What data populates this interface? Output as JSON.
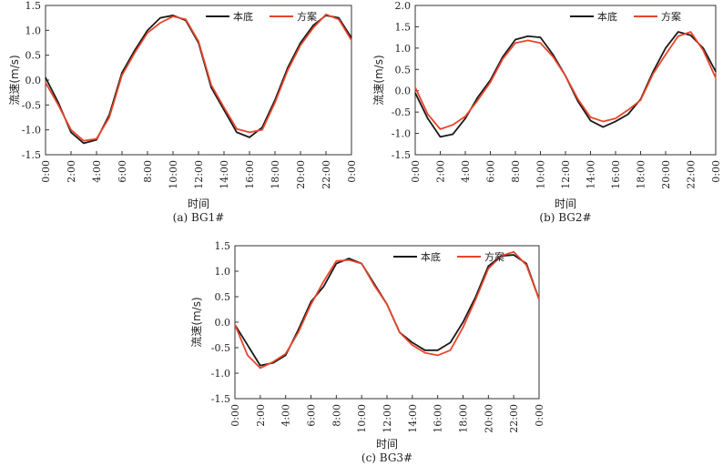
{
  "colors": {
    "base": "#1a1a1a",
    "plan": "#e8452a"
  },
  "chart_data": [
    {
      "type": "line",
      "caption": "(a) BG1#",
      "xlabel": "时间",
      "ylabel": "流速(m/s)",
      "ylim": [
        -1.5,
        1.5
      ],
      "yticks": [
        "-1.5",
        "-1.0",
        "-0.5",
        "0.0",
        "0.5",
        "1.0",
        "1.5"
      ],
      "xticks": [
        "0:00",
        "2:00",
        "4:00",
        "6:00",
        "8:00",
        "10:00",
        "12:00",
        "14:00",
        "16:00",
        "18:00",
        "20:00",
        "22:00",
        "0:00"
      ],
      "legend": [
        "本底",
        "方案"
      ],
      "legend_position": "top-right",
      "x": [
        0,
        1,
        2,
        3,
        4,
        5,
        6,
        7,
        8,
        9,
        10,
        11,
        12,
        13,
        14,
        15,
        16,
        17,
        18,
        19,
        20,
        21,
        22,
        23,
        24
      ],
      "series": [
        {
          "name": "本底",
          "values": [
            0.05,
            -0.45,
            -1.05,
            -1.27,
            -1.2,
            -0.7,
            0.15,
            0.6,
            1.0,
            1.25,
            1.3,
            1.2,
            0.75,
            -0.15,
            -0.6,
            -1.05,
            -1.15,
            -0.95,
            -0.4,
            0.25,
            0.75,
            1.1,
            1.3,
            1.25,
            0.85
          ]
        },
        {
          "name": "方案",
          "values": [
            -0.05,
            -0.5,
            -1.0,
            -1.22,
            -1.18,
            -0.75,
            0.1,
            0.55,
            0.95,
            1.15,
            1.28,
            1.22,
            0.78,
            -0.1,
            -0.55,
            -0.98,
            -1.05,
            -1.0,
            -0.45,
            0.2,
            0.7,
            1.05,
            1.32,
            1.22,
            0.8
          ]
        }
      ]
    },
    {
      "type": "line",
      "caption": "(b) BG2#",
      "xlabel": "时间",
      "ylabel": "流速(m/s)",
      "ylim": [
        -1.5,
        2.0
      ],
      "yticks": [
        "-1.5",
        "-1.0",
        "-0.5",
        "0.0",
        "0.5",
        "1.0",
        "1.5",
        "2.0"
      ],
      "xticks": [
        "0:00",
        "2:00",
        "4:00",
        "6:00",
        "8:00",
        "10:00",
        "12:00",
        "14:00",
        "16:00",
        "18:00",
        "20:00",
        "22:00",
        "0:00"
      ],
      "legend": [
        "本底",
        "方案"
      ],
      "legend_position": "top-right",
      "x": [
        0,
        1,
        2,
        3,
        4,
        5,
        6,
        7,
        8,
        9,
        10,
        11,
        12,
        13,
        14,
        15,
        16,
        17,
        18,
        19,
        20,
        21,
        22,
        23,
        24
      ],
      "series": [
        {
          "name": "本底",
          "values": [
            -0.05,
            -0.65,
            -1.08,
            -1.02,
            -0.65,
            -0.15,
            0.25,
            0.8,
            1.2,
            1.28,
            1.25,
            0.85,
            0.35,
            -0.25,
            -0.7,
            -0.85,
            -0.72,
            -0.55,
            -0.2,
            0.45,
            1.0,
            1.38,
            1.3,
            1.0,
            0.45
          ]
        },
        {
          "name": "方案",
          "values": [
            0.08,
            -0.55,
            -0.9,
            -0.8,
            -0.6,
            -0.22,
            0.2,
            0.75,
            1.12,
            1.18,
            1.12,
            0.8,
            0.35,
            -0.2,
            -0.62,
            -0.72,
            -0.65,
            -0.45,
            -0.22,
            0.4,
            0.85,
            1.28,
            1.38,
            0.95,
            0.3
          ]
        }
      ]
    },
    {
      "type": "line",
      "caption": "(c) BG3#",
      "xlabel": "时间",
      "ylabel": "流速(m/s)",
      "ylim": [
        -1.5,
        1.5
      ],
      "yticks": [
        "-1.5",
        "-1.0",
        "-0.5",
        "0.0",
        "0.5",
        "1.0",
        "1.5"
      ],
      "xticks": [
        "0:00",
        "2:00",
        "4:00",
        "6:00",
        "8:00",
        "10:00",
        "12:00",
        "14:00",
        "16:00",
        "18:00",
        "20:00",
        "22:00",
        "0:00"
      ],
      "legend": [
        "本底",
        "方案"
      ],
      "legend_position": "top-right",
      "x": [
        0,
        1,
        2,
        3,
        4,
        5,
        6,
        7,
        8,
        9,
        10,
        11,
        12,
        13,
        14,
        15,
        16,
        17,
        18,
        19,
        20,
        21,
        22,
        23,
        24
      ],
      "series": [
        {
          "name": "本底",
          "values": [
            -0.05,
            -0.45,
            -0.85,
            -0.8,
            -0.65,
            -0.15,
            0.4,
            0.7,
            1.15,
            1.25,
            1.15,
            0.75,
            0.35,
            -0.2,
            -0.4,
            -0.55,
            -0.55,
            -0.4,
            0.0,
            0.5,
            1.1,
            1.3,
            1.32,
            1.15,
            0.45
          ]
        },
        {
          "name": "方案",
          "values": [
            -0.05,
            -0.65,
            -0.9,
            -0.78,
            -0.62,
            -0.2,
            0.35,
            0.8,
            1.2,
            1.22,
            1.15,
            0.72,
            0.35,
            -0.2,
            -0.45,
            -0.6,
            -0.65,
            -0.55,
            -0.1,
            0.45,
            1.05,
            1.3,
            1.38,
            1.12,
            0.45
          ]
        }
      ]
    }
  ]
}
